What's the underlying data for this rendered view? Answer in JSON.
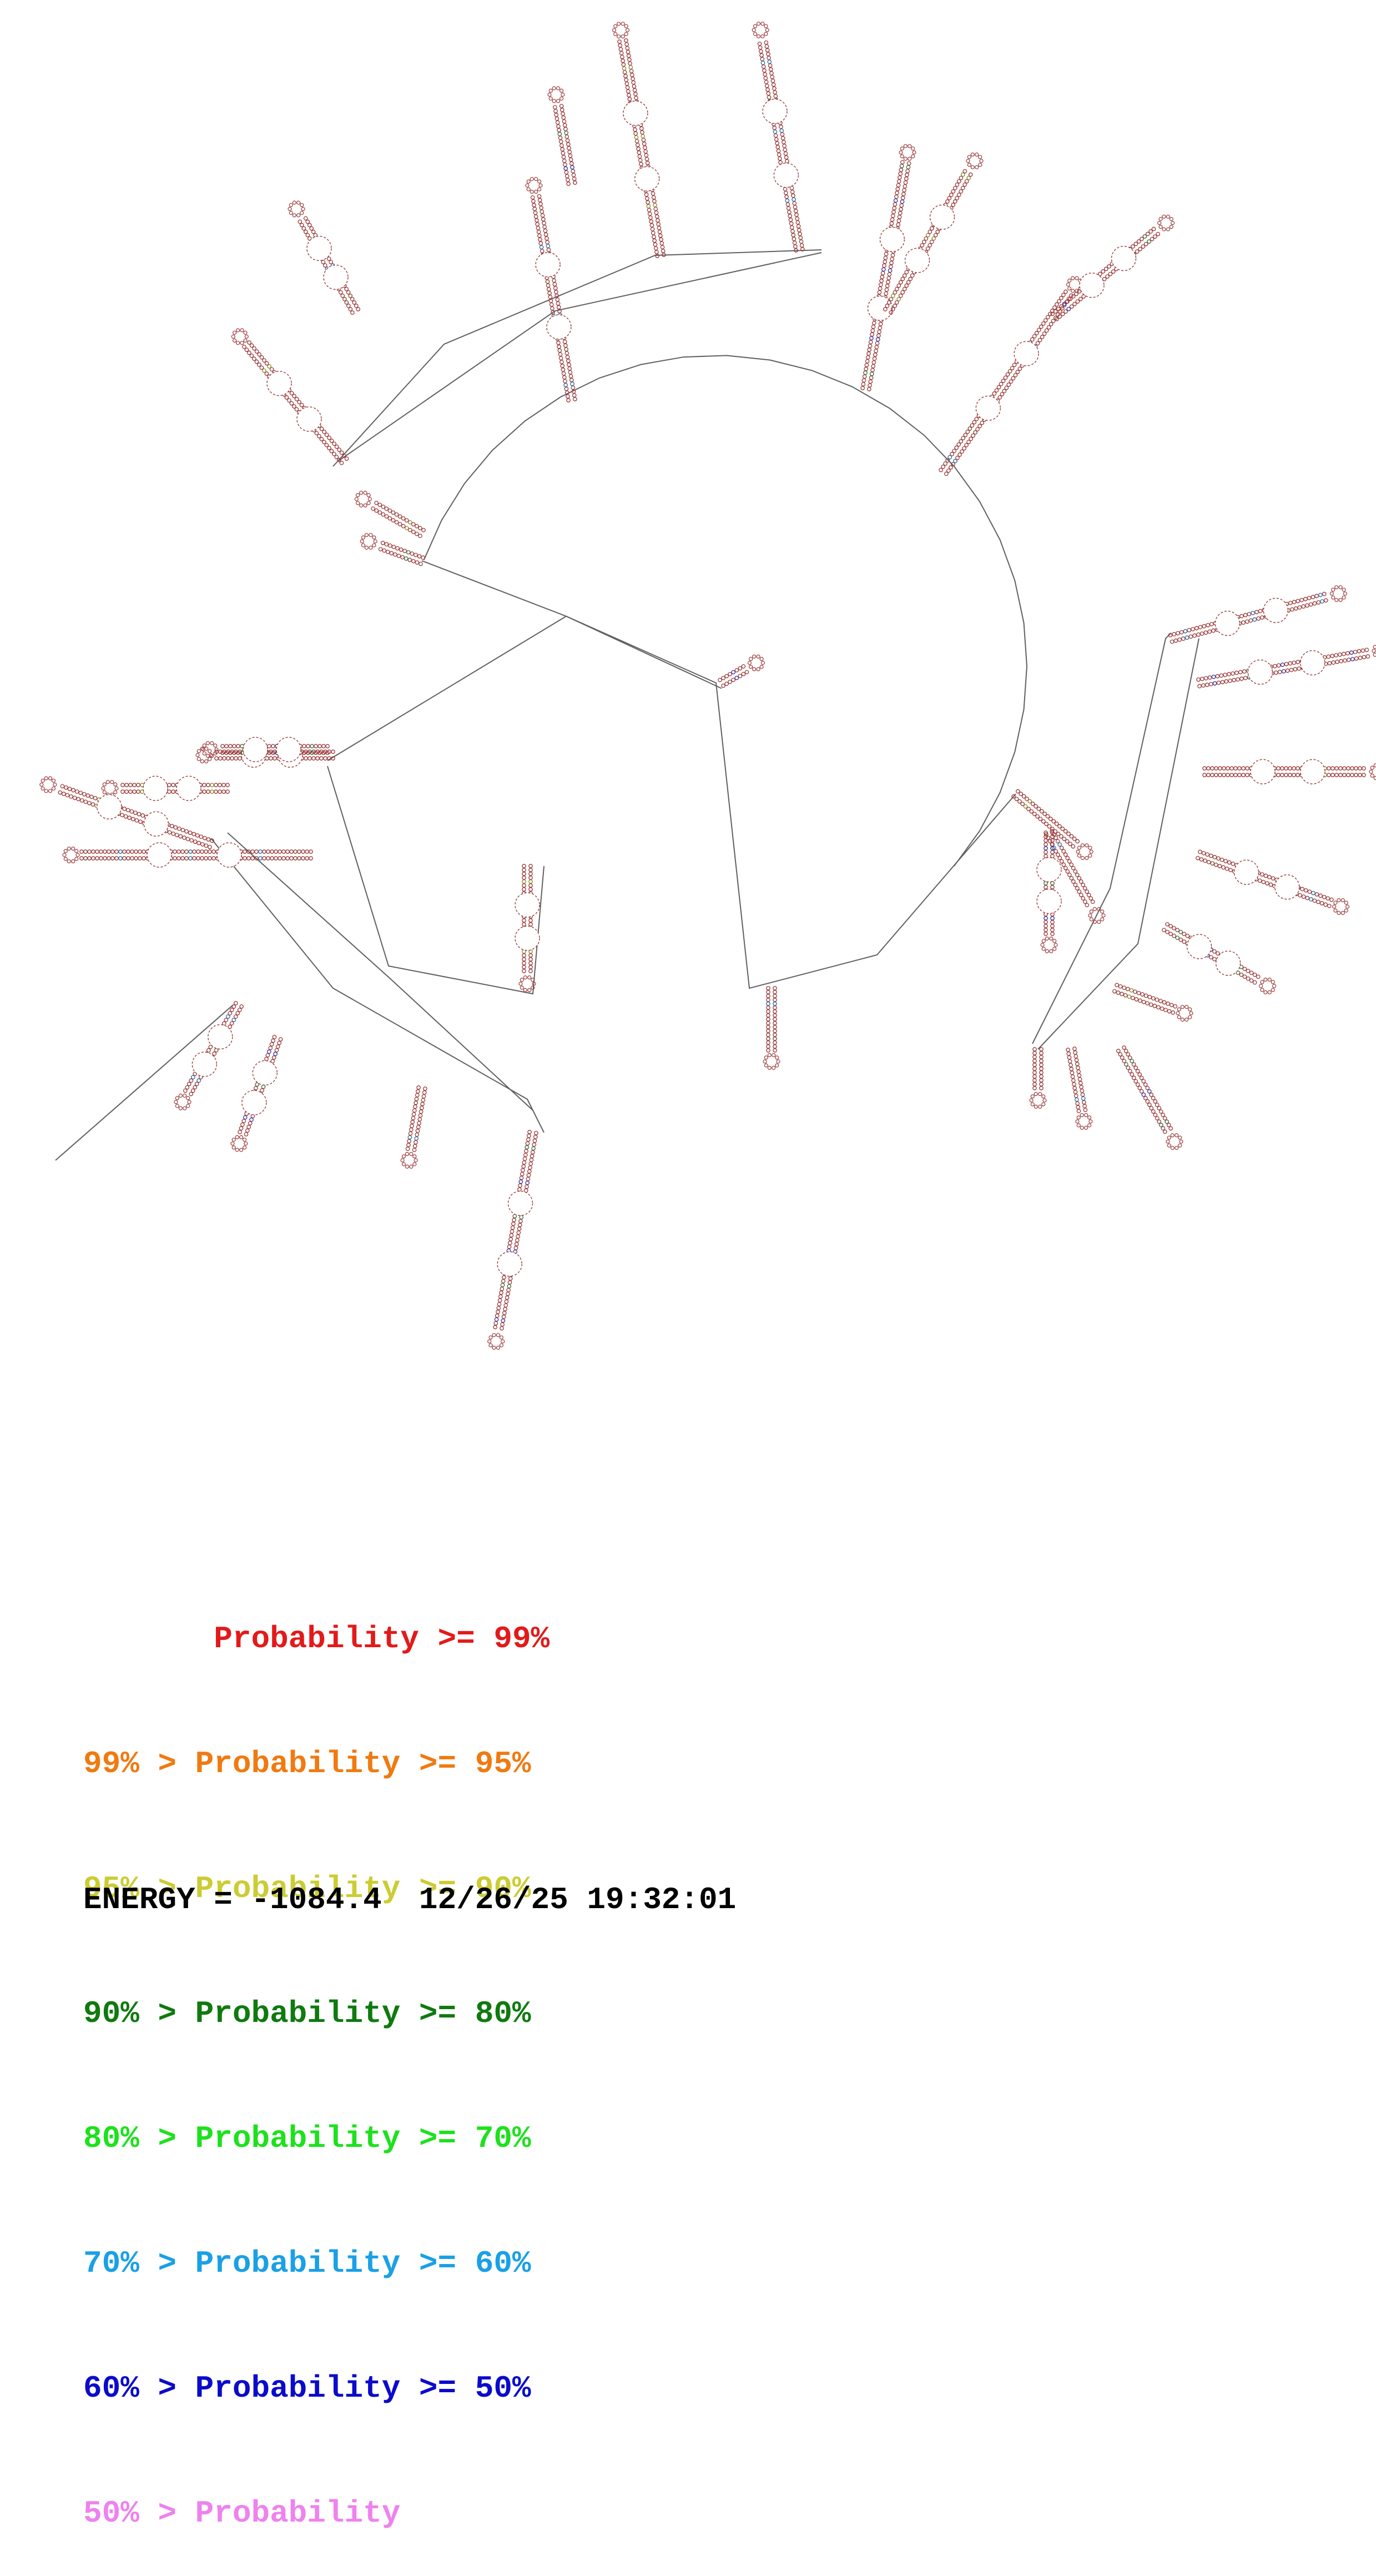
{
  "colors": {
    "background": "#ffffff",
    "backbone": "#606060",
    "nucleotide_default": "#9a3a3a",
    "nucleotide_mixed": [
      "#a23030",
      "#7a4a2a",
      "#3a6a3a",
      "#8a8a2a",
      "#2a6aa0",
      "#3030a0"
    ]
  },
  "legend": [
    {
      "prefix": "       ",
      "text": "Probability >= 99%",
      "color": "#e31a1a"
    },
    {
      "prefix": "99% > ",
      "text": "Probability >= 95%",
      "color": "#f07a10"
    },
    {
      "prefix": "95% > ",
      "text": "Probability >= 90%",
      "color": "#cccc33"
    },
    {
      "prefix": "90% > ",
      "text": "Probability >= 80%",
      "color": "#0f7a0f"
    },
    {
      "prefix": "80% > ",
      "text": "Probability >= 70%",
      "color": "#1de11d"
    },
    {
      "prefix": "70% > ",
      "text": "Probability >= 60%",
      "color": "#1aa0e6"
    },
    {
      "prefix": "60% > ",
      "text": "Probability >= 50%",
      "color": "#0b0bcc"
    },
    {
      "prefix": "50% > ",
      "text": "Probability",
      "color": "#ee82ee"
    }
  ],
  "footer": {
    "energy_label": "ENERGY = ",
    "energy_value": "-1084.4",
    "timestamp": "12/26/25 19:32:01"
  }
}
